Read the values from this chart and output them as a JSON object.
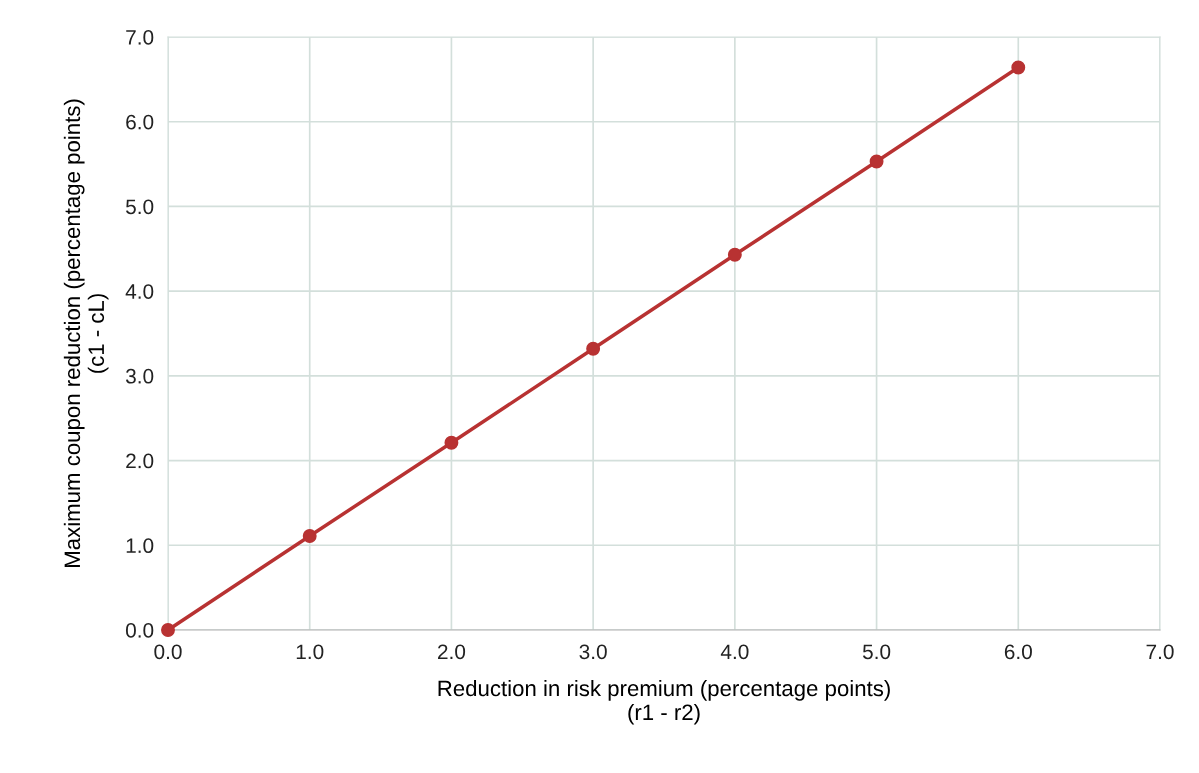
{
  "chart_data": {
    "type": "line",
    "xlabel": "Reduction in risk premium (percentage points)\n(r1 - r2)",
    "ylabel": "Maximum coupon reduction (percentage points)\n(c1 - cL)",
    "x": [
      0,
      1,
      2,
      3,
      4,
      5,
      6
    ],
    "series": [
      {
        "color": "#b83232",
        "values": [
          0,
          1.11,
          2.21,
          3.32,
          4.43,
          5.53,
          6.64
        ]
      }
    ],
    "xlim": [
      0,
      7
    ],
    "ylim": [
      0,
      7
    ],
    "xticks": [
      {
        "value": 0,
        "label": "0.0"
      },
      {
        "value": 1,
        "label": "1.0"
      },
      {
        "value": 2,
        "label": "2.0"
      },
      {
        "value": 3,
        "label": "3.0"
      },
      {
        "value": 4,
        "label": "4.0"
      },
      {
        "value": 5,
        "label": "5.0"
      },
      {
        "value": 6,
        "label": "6.0"
      },
      {
        "value": 7,
        "label": "7.0"
      }
    ],
    "yticks": [
      {
        "value": 0,
        "label": "0.0"
      },
      {
        "value": 1,
        "label": "1.0"
      },
      {
        "value": 2,
        "label": "2.0"
      },
      {
        "value": 3,
        "label": "3.0"
      },
      {
        "value": 4,
        "label": "4.0"
      },
      {
        "value": 5,
        "label": "5.0"
      },
      {
        "value": 6,
        "label": "6.0"
      },
      {
        "value": 7,
        "label": "7.0"
      }
    ],
    "grid": true,
    "marker": "circle",
    "line_style": "solid"
  }
}
